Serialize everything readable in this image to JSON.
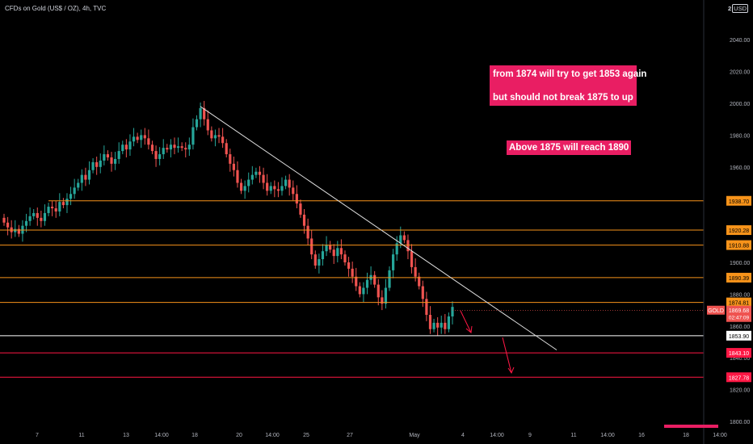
{
  "header": {
    "symbol_title": "CFDs on Gold (US$ / OZ), 4h, TVC",
    "currency_prefix": "2",
    "currency": "USD"
  },
  "annotations": {
    "box1_line1": "from 1874 will try to get 1853 again",
    "box1_line2": "but should not break 1875 to up",
    "box2": "Above 1875 will reach 1890"
  },
  "colors": {
    "background": "#000000",
    "up": "#26a69a",
    "down": "#ef5350",
    "level": "#f7931a",
    "support": "#ff1744",
    "annotation_bg": "#e91e63",
    "trendline": "#e0e0e0"
  },
  "chart_data": {
    "type": "candlestick",
    "title": "CFDs on Gold (US$ / OZ), 4h, TVC",
    "currency": "USD",
    "ylim": [
      1796,
      2060
    ],
    "y_ticks": [
      1800,
      1820,
      1840,
      1860,
      1880,
      1900,
      1920,
      1940,
      1960,
      1980,
      2000,
      2020,
      2040
    ],
    "x_ticks": [
      "7",
      "11",
      "13",
      "14:00",
      "18",
      "20",
      "14:00",
      "25",
      "27",
      "May",
      "4",
      "14:00",
      "9",
      "11",
      "14:00",
      "16",
      "18",
      "14:00"
    ],
    "horizontal_levels": [
      {
        "price": "1938.70",
        "type": "resistance",
        "color": "#f7931a"
      },
      {
        "price": "1920.28",
        "type": "resistance",
        "color": "#f7931a"
      },
      {
        "price": "1910.88",
        "type": "resistance",
        "color": "#f7931a"
      },
      {
        "price": "1890.39",
        "type": "resistance",
        "color": "#f7931a"
      },
      {
        "price": "1874.81",
        "type": "resistance",
        "color": "#f7931a"
      },
      {
        "price": "1853.90",
        "type": "support",
        "color": "#ffffff"
      },
      {
        "price": "1843.10",
        "type": "support",
        "color": "#ff1744"
      },
      {
        "price": "1827.78",
        "type": "support",
        "color": "#ff1744"
      }
    ],
    "current_price": {
      "symbol": "GOLD",
      "price": "1869.68",
      "countdown": "02:47:09"
    },
    "trendline": {
      "from": {
        "price": 1998
      },
      "to": {
        "price": 1850
      }
    },
    "candles_close": [
      1925,
      1922,
      1919,
      1921,
      1918,
      1923,
      1926,
      1929,
      1931,
      1928,
      1926,
      1931,
      1935,
      1934,
      1932,
      1938,
      1936,
      1940,
      1943,
      1947,
      1950,
      1955,
      1952,
      1958,
      1963,
      1960,
      1964,
      1968,
      1966,
      1962,
      1965,
      1970,
      1974,
      1971,
      1976,
      1979,
      1977,
      1980,
      1978,
      1974,
      1970,
      1965,
      1968,
      1972,
      1971,
      1974,
      1972,
      1973,
      1972,
      1971,
      1974,
      1985,
      1990,
      1997,
      1990,
      1983,
      1978,
      1980,
      1979,
      1975,
      1968,
      1962,
      1958,
      1950,
      1945,
      1948,
      1952,
      1955,
      1957,
      1955,
      1950,
      1945,
      1948,
      1946,
      1945,
      1948,
      1952,
      1947,
      1943,
      1937,
      1930,
      1923,
      1915,
      1905,
      1898,
      1902,
      1907,
      1911,
      1908,
      1904,
      1909,
      1905,
      1900,
      1896,
      1891,
      1885,
      1880,
      1884,
      1889,
      1892,
      1886,
      1878,
      1874,
      1884,
      1895,
      1905,
      1912,
      1917,
      1914,
      1907,
      1897,
      1891,
      1885,
      1877,
      1867,
      1858,
      1862,
      1859,
      1862,
      1858,
      1866,
      1872
    ]
  }
}
